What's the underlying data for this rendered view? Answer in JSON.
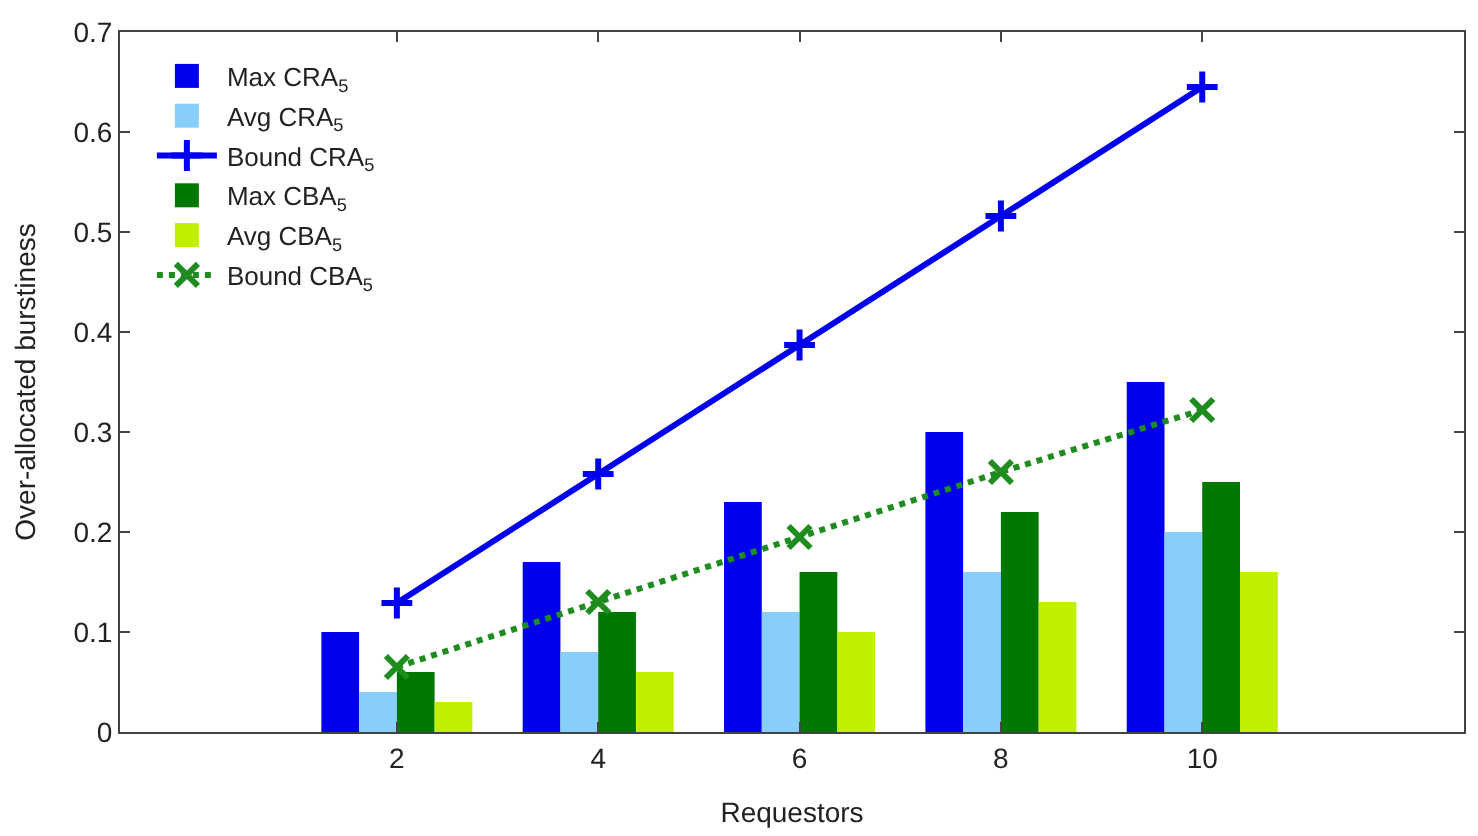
{
  "chart_data": {
    "type": "bar",
    "xlabel": "Requestors",
    "ylabel": "Over-allocated burstiness",
    "x": [
      2,
      4,
      6,
      8,
      10
    ],
    "series": [
      {
        "name": "Max CRA$_{5}$",
        "color": "#0000ee",
        "values": [
          0.1,
          0.17,
          0.23,
          0.3,
          0.35
        ]
      },
      {
        "name": "Avg CRA$_{5}$",
        "color": "#87cefa",
        "values": [
          0.04,
          0.08,
          0.12,
          0.16,
          0.2
        ]
      },
      {
        "name": "Bound CRA$_{5}$",
        "type": "line",
        "color": "#0000ee",
        "marker": "cross",
        "line_style": "solid",
        "values": [
          0.129,
          0.258,
          0.387,
          0.516,
          0.645
        ]
      },
      {
        "name": "Max CBA$_{5}$",
        "color": "#007800",
        "values": [
          0.06,
          0.12,
          0.16,
          0.22,
          0.25
        ]
      },
      {
        "name": "Avg CBA$_{5}$",
        "color": "#c0f000",
        "values": [
          0.03,
          0.06,
          0.1,
          0.13,
          0.16
        ]
      },
      {
        "name": "Bound CBA$_{5}$",
        "type": "line",
        "color": "#1e8c1e",
        "marker": "x",
        "line_style": "dotted",
        "values": [
          0.065,
          0.13,
          0.195,
          0.26,
          0.322
        ]
      }
    ],
    "xlim": [
      -0.75,
      12.6
    ],
    "xticks": [
      2,
      4,
      6,
      8,
      10
    ],
    "ylim": [
      0,
      0.7
    ],
    "yticks": [
      0,
      0.1,
      0.2,
      0.3,
      0.4,
      0.5,
      0.6,
      0.7
    ],
    "legend": "top left"
  }
}
